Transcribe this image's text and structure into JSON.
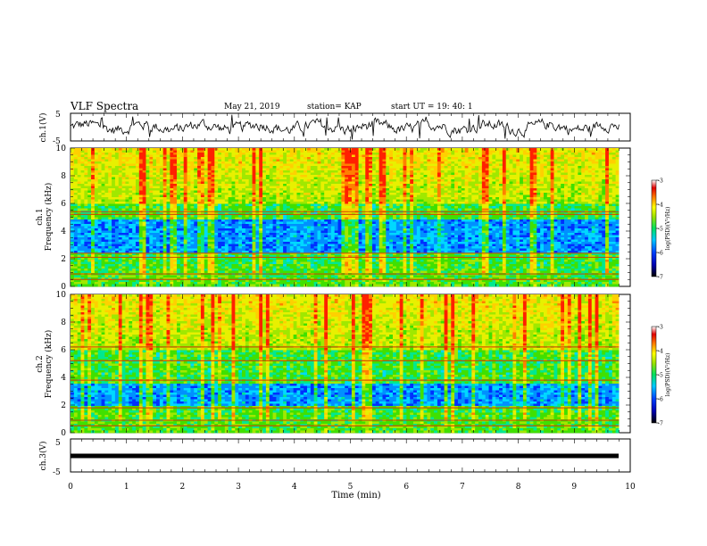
{
  "header": {
    "title": "VLF Spectra",
    "date": "May 21, 2019",
    "station": "station= KAP",
    "start": "start  UT =   19: 40: 1"
  },
  "colorbar": {
    "label": "log(PSD)(V²/Hz)",
    "ticks": [
      "-3",
      "-4",
      "-5",
      "-6",
      "-7"
    ]
  },
  "chart_data": [
    {
      "type": "line",
      "panel": "ch.1 waveform",
      "ylabel": "ch.1(V)",
      "ylim": [
        -5,
        5
      ],
      "yticks": [
        "5",
        "-5"
      ],
      "series": [
        {
          "name": "ch.1",
          "description_values": "noisy signal oscillating roughly between -2 and 2 V"
        }
      ]
    },
    {
      "type": "heatmap",
      "panel": "ch.1 spectrogram",
      "ylabel": "ch.1\nFrequency (kHz)",
      "ylim": [
        0,
        10
      ],
      "yticks": [
        "0",
        "2",
        "4",
        "6",
        "8",
        "10"
      ],
      "zlim": [
        -7,
        -3
      ],
      "features": {
        "quiet_band_khz": [
          2.5,
          4.8
        ],
        "strong_lines_khz": [
          0.5,
          0.9,
          2.1,
          2.4,
          5.2,
          5.4
        ]
      }
    },
    {
      "type": "heatmap",
      "panel": "ch.2 spectrogram",
      "ylabel": "ch.2\nFrequency (kHz)",
      "ylim": [
        0,
        10
      ],
      "yticks": [
        "0",
        "2",
        "4",
        "6",
        "8",
        "10"
      ],
      "zlim": [
        -7,
        -3
      ],
      "features": {
        "quiet_band_khz": [
          1.9,
          3.6
        ],
        "strong_lines_khz": [
          0.5,
          0.9,
          1.8,
          3.8,
          5.2,
          6.2
        ]
      }
    },
    {
      "type": "line",
      "panel": "ch.3 waveform",
      "ylabel": "ch.3(V)",
      "ylim": [
        -5,
        5
      ],
      "yticks": [
        "5",
        "-5"
      ],
      "series": [
        {
          "name": "ch.3",
          "values": [
            0
          ]
        }
      ]
    }
  ],
  "xaxis": {
    "label": "Time (min)",
    "range": [
      0,
      10
    ],
    "ticks": [
      "0",
      "1",
      "2",
      "3",
      "4",
      "5",
      "6",
      "7",
      "8",
      "9",
      "10"
    ],
    "data_end": 9.8
  }
}
